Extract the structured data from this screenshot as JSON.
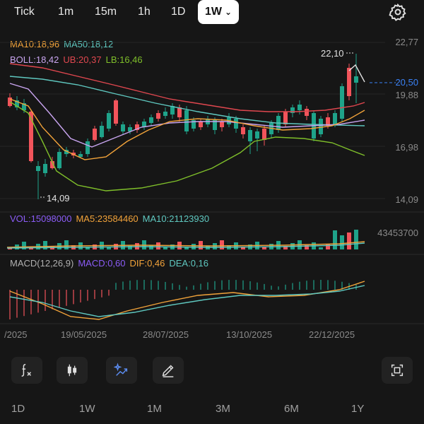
{
  "timeframes": [
    "Tick",
    "1m",
    "15m",
    "1h",
    "1D"
  ],
  "active_timeframe": "1W",
  "icons": {
    "settings": "gear-icon",
    "formula": "function-icon",
    "candles": "candlestick-icon",
    "ai": "sparkle-trend-icon",
    "draw": "pencil-icon",
    "fullscreen": "fullscreen-icon"
  },
  "legend_main": {
    "ma10": "MA10:18,96",
    "ma50": "MA50:18,12",
    "boll": "BOLL:18,42",
    "ub": "UB:20,37",
    "lb": "LB:16,46"
  },
  "legend_volume": {
    "vol": "VOL:15098000",
    "ma5": "MA5:23584460",
    "ma10": "MA10:21123930"
  },
  "legend_macd": {
    "macd_params": "MACD(12,26,9)",
    "macd": "MACD:0,60",
    "dif": "DIF:0,46",
    "dea": "DEA:0,16"
  },
  "price_axis": {
    "ticks": [
      "22,77",
      "19,88",
      "16,98",
      "14,09"
    ],
    "current": "20,50"
  },
  "volume_axis_max": "43453700",
  "annotations": {
    "high": "22,10",
    "low": "14,09"
  },
  "x_axis": [
    "/2025",
    "19/05/2025",
    "28/07/2025",
    "13/10/2025",
    "22/12/2025"
  ],
  "periods": [
    "1D",
    "1W",
    "1M",
    "3M",
    "6M",
    "1Y"
  ],
  "colors": {
    "up": "#1fa38a",
    "down": "#f2545b",
    "ma10": "#f2a33a",
    "ma50": "#5fc8c0",
    "boll": "#c9a5f0",
    "ub": "#e0474f",
    "lb": "#7fbf2a",
    "vol": "#8b5cf6",
    "macd": "#8b5cf6",
    "dif": "#f2a33a",
    "dea": "#5fc8c0"
  }
}
